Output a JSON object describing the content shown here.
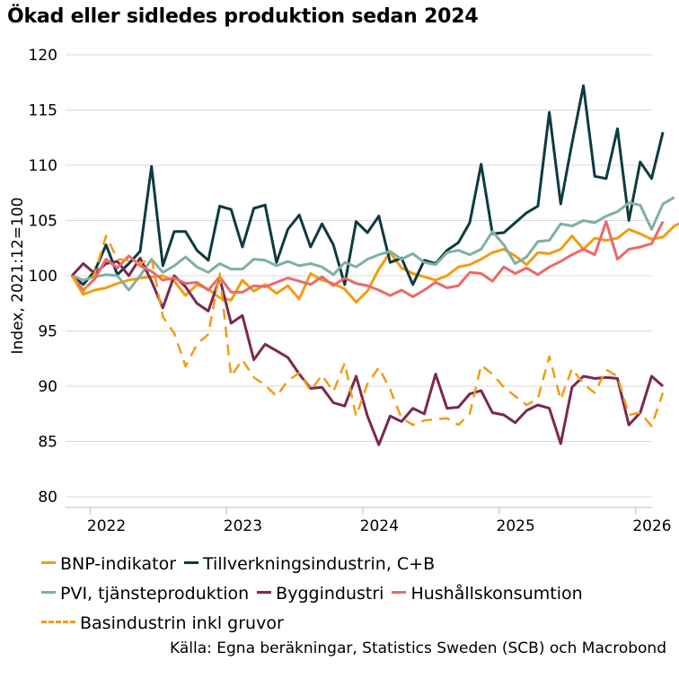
{
  "chart_data": {
    "type": "line",
    "title": "Ökad eller sidledes produktion sedan 2024",
    "xlabel": "",
    "ylabel": "Index, 2021:12=100",
    "ylim": [
      80,
      120
    ],
    "yticks": [
      "80",
      "85",
      "90",
      "95",
      "100",
      "105",
      "110",
      "115",
      "120"
    ],
    "xlim": [
      2021.7,
      2026.0
    ],
    "xticks": [
      "2022",
      "2023",
      "2024",
      "2025",
      "2026"
    ],
    "grid": "horizontal",
    "legend_position": "bottom",
    "source": "Källa: Egna beräkningar, Statistics Sweden (SCB) och Macrobond",
    "x_start": "2021-12",
    "x_step": "month",
    "series": [
      {
        "name": "BNP-indikator",
        "color": "#f39c12",
        "dash": false,
        "values": [
          100,
          98.3,
          98.7,
          98.9,
          99.3,
          99.6,
          99.8,
          99.9,
          100,
          99.5,
          98.2,
          99.2,
          98.8,
          98,
          97.8,
          99.6,
          98.6,
          99.2,
          98.4,
          99.1,
          97.9,
          100.2,
          99.6,
          99.3,
          98.8,
          97.6,
          98.6,
          100.6,
          102.1,
          100.7,
          100.2,
          99.9,
          99.6,
          100,
          100.8,
          101,
          101.5,
          102.1,
          102.4,
          101.8,
          101,
          102.1,
          102,
          102.4,
          103.6,
          102.4,
          103.4,
          103.2,
          103.4,
          104.2,
          103.8,
          103.3,
          103.5,
          104.5,
          105
        ]
      },
      {
        "name": "Tillverkningsindustrin, C+B",
        "color": "#0d3b40",
        "dash": false,
        "values": [
          100,
          99.2,
          100.4,
          102.8,
          100.1,
          101.1,
          102.2,
          109.9,
          100.9,
          104,
          104,
          102.3,
          101.4,
          106.3,
          106,
          102.6,
          106.1,
          106.4,
          101.2,
          104.2,
          105.5,
          102.6,
          104.7,
          102.8,
          99.2,
          104.9,
          103.9,
          105.4,
          101.2,
          101.6,
          99.2,
          101.4,
          101.1,
          102.3,
          103,
          104.8,
          110.1,
          103.8,
          103.9,
          104.8,
          105.7,
          106.3,
          114.8,
          106.5,
          112,
          117.2,
          109,
          108.8,
          113.3,
          105,
          110.3,
          108.8,
          113
        ]
      },
      {
        "name": "PVI, tjänsteproduktion",
        "color": "#7fb0a3",
        "dash": false,
        "values": [
          100,
          99.6,
          99.9,
          100.1,
          100,
          98.7,
          100,
          101.5,
          100.3,
          100.9,
          101.7,
          100.8,
          100.3,
          101.1,
          100.6,
          100.6,
          101.5,
          101.4,
          100.9,
          101.3,
          100.9,
          101.1,
          100.8,
          100.1,
          101.2,
          100.8,
          101.5,
          101.9,
          102.2,
          101.5,
          102,
          101.2,
          101,
          102.1,
          102.3,
          101.9,
          102.4,
          104,
          102.8,
          101.1,
          101.7,
          103.1,
          103.2,
          104.7,
          104.5,
          105,
          104.8,
          105.4,
          105.8,
          106.6,
          106.4,
          104.2,
          106.5,
          107.1
        ]
      },
      {
        "name": "Byggindustri",
        "color": "#7b2852",
        "dash": false,
        "values": [
          100,
          101.1,
          100.2,
          101.1,
          101.3,
          100,
          101.6,
          99.5,
          97.1,
          100,
          99,
          97.5,
          96.8,
          99.8,
          95.7,
          96.4,
          92.4,
          93.8,
          93.2,
          92.6,
          91.1,
          89.8,
          89.9,
          88.5,
          88.2,
          90.9,
          87.3,
          84.7,
          87.3,
          86.8,
          88,
          87.5,
          91.1,
          88,
          88.1,
          89.3,
          89.6,
          87.6,
          87.4,
          86.7,
          87.8,
          88.3,
          88,
          84.8,
          89.9,
          90.9,
          90.7,
          90.8,
          90.7,
          86.5,
          87.6,
          90.9,
          90
        ]
      },
      {
        "name": "Hushållskonsumtion",
        "color": "#ea6a6a",
        "dash": false,
        "values": [
          100,
          98.7,
          99.7,
          101.5,
          100.7,
          101.8,
          100.9,
          100.4,
          99.6,
          99.8,
          99.3,
          99.4,
          98.7,
          99.9,
          98.5,
          98.5,
          99.1,
          99,
          99.4,
          99.8,
          99.5,
          99.2,
          99.9,
          99.1,
          99.8,
          99.3,
          99.1,
          98.7,
          98.2,
          98.7,
          98.1,
          98.7,
          99.4,
          98.9,
          99.1,
          100.3,
          100.2,
          99.5,
          100.8,
          100.2,
          100.7,
          100.1,
          100.8,
          101.3,
          101.9,
          102.4,
          101.9,
          104.9,
          101.5,
          102.4,
          102.6,
          102.9,
          104.9
        ]
      },
      {
        "name": "Basindustrin inkl gruvor",
        "color": "#f39c12",
        "dash": true,
        "values": [
          100,
          98.5,
          100.2,
          103.6,
          101.5,
          101.4,
          101.1,
          101.6,
          96.3,
          94.8,
          91.8,
          93.8,
          94.7,
          100.2,
          90.9,
          92.4,
          90.8,
          90.1,
          89.1,
          90.5,
          91.2,
          89.6,
          91,
          89.5,
          92.1,
          87.3,
          90.2,
          91.7,
          89.7,
          87.1,
          86.5,
          86.9,
          87,
          87.1,
          86.5,
          87.5,
          91.9,
          91.1,
          89.9,
          89.1,
          88.3,
          88.9,
          92.7,
          88.8,
          91.6,
          90.2,
          89.4,
          91.5,
          90.9,
          87.4,
          87.6,
          86.4,
          89.4
        ]
      }
    ]
  },
  "legend": [
    {
      "label": "BNP-indikator",
      "color": "#f39c12",
      "dashed": false
    },
    {
      "label": "Tillverkningsindustrin, C+B",
      "color": "#0d3b40",
      "dashed": false
    },
    {
      "label": "PVI, tjänsteproduktion",
      "color": "#7fb0a3",
      "dashed": false
    },
    {
      "label": "Byggindustri",
      "color": "#7b2852",
      "dashed": false
    },
    {
      "label": "Hushållskonsumtion",
      "color": "#ea6a6a",
      "dashed": false
    },
    {
      "label": "Basindustrin inkl gruvor",
      "color": "#f39c12",
      "dashed": true
    }
  ]
}
